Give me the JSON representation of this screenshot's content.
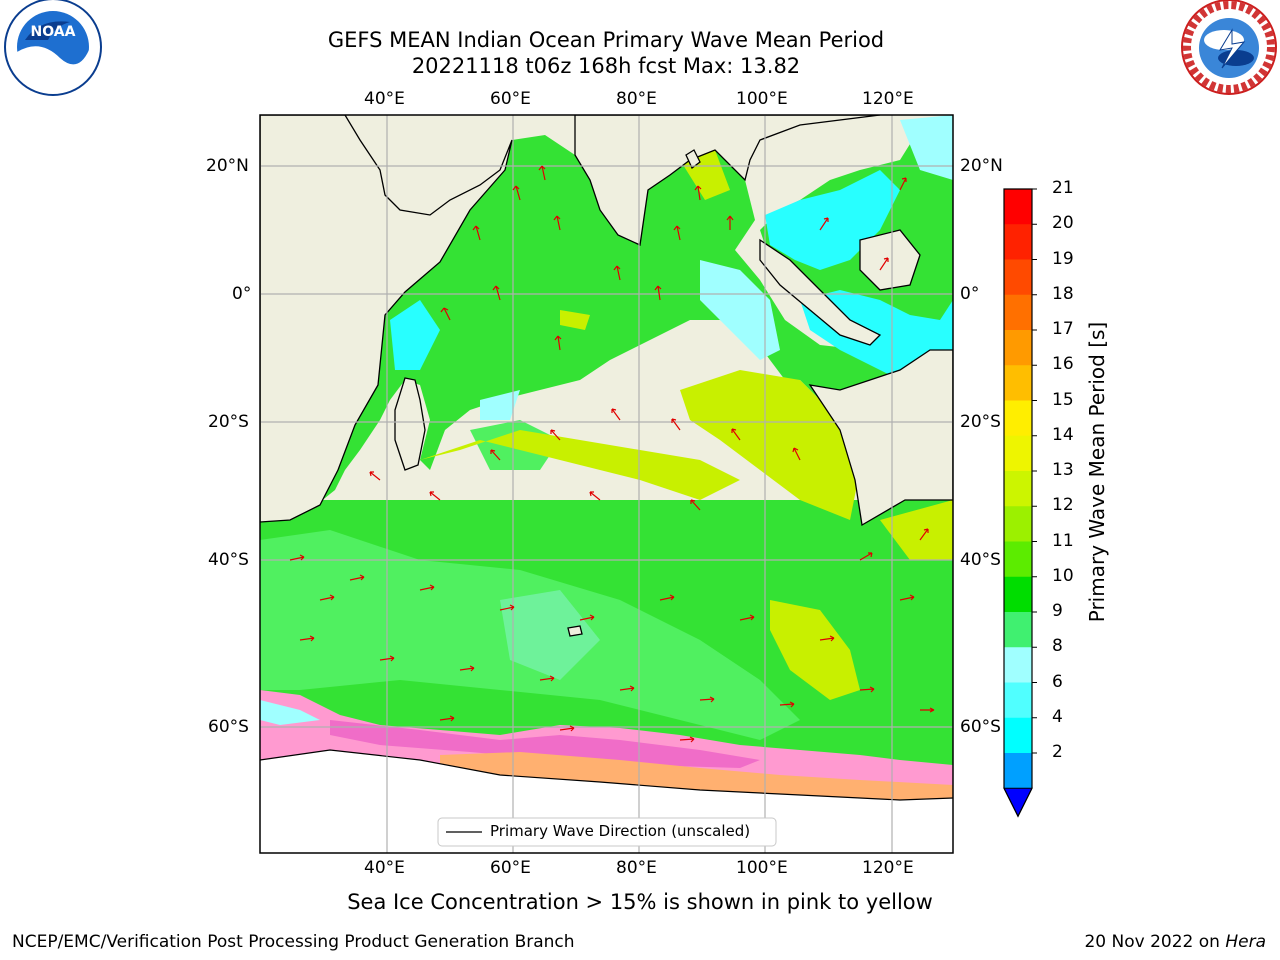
{
  "title": {
    "line1": "GEFS MEAN Indian Ocean Primary Wave Mean Period",
    "line2": "20221118 t06z 168h fcst   Max: 13.82"
  },
  "map": {
    "lon_labels": [
      "40°E",
      "60°E",
      "80°E",
      "100°E",
      "120°E"
    ],
    "lat_labels": [
      "20°N",
      "0°",
      "20°S",
      "40°S",
      "60°S"
    ],
    "colors": {
      "land": "#efefdf",
      "ocean_green": "#34e234",
      "ice_pink": "#f06dc8"
    }
  },
  "legend": {
    "label": "Primary Wave Direction (unscaled)"
  },
  "colorbar": {
    "title": "Primary Wave Mean Period [s]",
    "ticks": [
      "21",
      "20",
      "19",
      "18",
      "17",
      "16",
      "15",
      "14",
      "13",
      "12",
      "11",
      "10",
      "9",
      "8",
      "6",
      "4",
      "2"
    ],
    "colors": [
      "#ff0000",
      "#ff2200",
      "#ff4a00",
      "#ff7000",
      "#ff9a00",
      "#ffbe00",
      "#ffee00",
      "#eef500",
      "#ccf500",
      "#9cf000",
      "#5cec00",
      "#00dd00",
      "#40f070",
      "#a0ffff",
      "#50ffff",
      "#00ffff",
      "#00a0ff",
      "#0060ff"
    ]
  },
  "caption": "Sea Ice Concentration > 15% is shown in pink to yellow",
  "footer": {
    "left": "NCEP/EMC/Verification Post Processing Product Generation Branch",
    "right": "20 Nov 2022 on ",
    "right_italic": "Hera"
  },
  "logos": {
    "noaa_text": "NOAA",
    "nws_text": "NATIONAL WEATHER SERVICE"
  }
}
